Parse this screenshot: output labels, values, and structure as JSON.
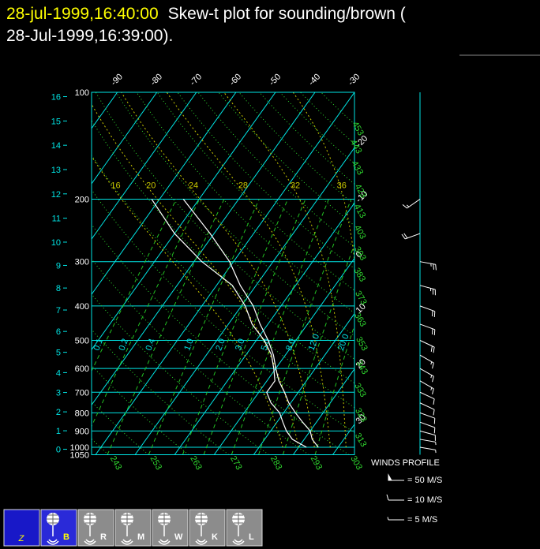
{
  "title": "28-jul-1999,16:40:00",
  "subtitle": [
    "Skew-t plot for sounding/brown (",
    "28-Jul-1999,16:39:00)."
  ],
  "chart_data": {
    "type": "skewt",
    "pressure": [
      1000,
      950,
      900,
      850,
      800,
      750,
      700,
      650,
      600,
      550,
      500,
      450,
      400,
      350,
      300,
      250,
      200
    ],
    "temperature": [
      25,
      22,
      20,
      16.5,
      13,
      9.5,
      6.5,
      3,
      0,
      -3,
      -7,
      -12,
      -17,
      -24,
      -31,
      -41,
      -54
    ],
    "dewpoint": [
      22,
      17,
      14,
      11.5,
      9,
      5,
      2,
      2,
      -0.5,
      -3.5,
      -8,
      -14,
      -19,
      -26,
      -38,
      -50,
      -62
    ],
    "wind_speed": [
      6,
      8,
      10,
      10,
      12,
      12,
      14,
      15,
      16,
      18,
      20,
      22,
      24,
      26,
      28,
      24,
      15
    ],
    "wind_direction": [
      100,
      100,
      105,
      110,
      110,
      115,
      115,
      120,
      120,
      120,
      115,
      110,
      110,
      105,
      100,
      250,
      235
    ],
    "ylim": [
      1050,
      100
    ],
    "yticks": [
      100,
      200,
      300,
      400,
      500,
      600,
      700,
      800,
      900,
      1000,
      1050
    ],
    "log_y": true,
    "xlim": [
      -31,
      35.5
    ],
    "xticks": [
      -90,
      -80,
      -70,
      -60,
      -50,
      -40,
      -30,
      -20,
      -10,
      0,
      10,
      20,
      30
    ],
    "height_ticks": [
      0,
      1,
      2,
      3,
      4,
      5,
      6,
      7,
      8,
      9,
      10,
      11,
      12,
      13,
      14,
      15,
      16
    ],
    "dry_adiabats": [
      243,
      253,
      263,
      273,
      283,
      293,
      303,
      313,
      323,
      333,
      343,
      353,
      363,
      373,
      383,
      393,
      403,
      413,
      423,
      433,
      443,
      453
    ],
    "mixing_ratios": [
      0.1,
      0.2,
      0.4,
      {
        "value": 1,
        "label": "1.0"
      },
      {
        "value": 2,
        "label": "2.0"
      },
      {
        "value": 3,
        "label": "3.0"
      },
      {
        "value": 5,
        "label": "5.0"
      },
      {
        "value": 8,
        "label": "8.0"
      },
      {
        "value": 12,
        "label": "12.0"
      },
      {
        "value": 20,
        "label": "20.0"
      }
    ],
    "moist_adiabats": [
      16,
      20,
      24,
      28,
      32,
      36
    ],
    "colors": {
      "isotherm": "#00e5e5",
      "dry": "#2fd82f",
      "mixing": "#22c022",
      "moist": "#c8c800",
      "sounding": "#ffffff",
      "wind": "#ffffff",
      "height": "#00e5e5"
    }
  },
  "wind_legend": {
    "title": "WINDS PROFILE",
    "entries": [
      {
        "speed": 50,
        "label": "= 50 M/S"
      },
      {
        "speed": 10,
        "label": "= 10 M/S"
      },
      {
        "speed": 5,
        "label": "= 5 M/S"
      }
    ]
  },
  "toolbar": {
    "logo": "Z",
    "buttons": [
      "B",
      "R",
      "M",
      "W",
      "K",
      "L"
    ]
  }
}
